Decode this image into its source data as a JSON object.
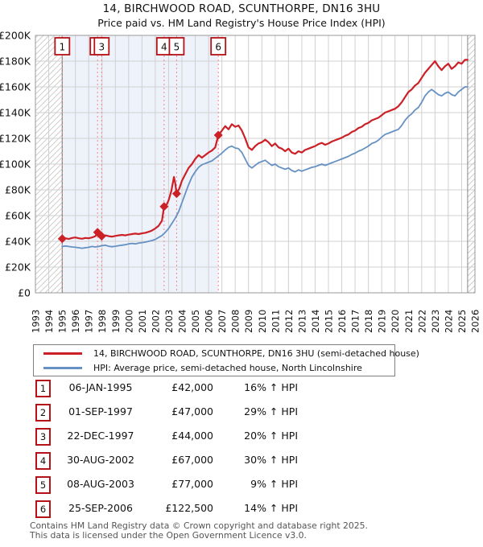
{
  "header": {
    "title": "14, BIRCHWOOD ROAD, SCUNTHORPE, DN16 3HU",
    "subtitle": "Price paid vs. HM Land Registry's House Price Index (HPI)"
  },
  "legend": {
    "property_label": "14, BIRCHWOOD ROAD, SCUNTHORPE, DN16 3HU (semi-detached house)",
    "hpi_label": "HPI: Average price, semi-detached house, North Lincolnshire"
  },
  "transactions": [
    {
      "n": "1",
      "date": "06-JAN-1995",
      "price": "£42,000",
      "change": "16% ↑ HPI"
    },
    {
      "n": "2",
      "date": "01-SEP-1997",
      "price": "£47,000",
      "change": "29% ↑ HPI"
    },
    {
      "n": "3",
      "date": "22-DEC-1997",
      "price": "£44,000",
      "change": "20% ↑ HPI"
    },
    {
      "n": "4",
      "date": "30-AUG-2002",
      "price": "£67,000",
      "change": "30% ↑ HPI"
    },
    {
      "n": "5",
      "date": "08-AUG-2003",
      "price": "£77,000",
      "change": "9% ↑ HPI"
    },
    {
      "n": "6",
      "date": "25-SEP-2006",
      "price": "£122,500",
      "change": "14% ↑ HPI"
    }
  ],
  "footer": {
    "line1": "Contains HM Land Registry data © Crown copyright and database right 2025.",
    "line2": "This data is licensed under the Open Government Licence v3.0."
  },
  "chart_data": {
    "type": "line",
    "title": "Price paid vs. HM Land Registry's House Price Index (HPI)",
    "values_unit": "GBP_thousands",
    "colors": {
      "property_line": "#cc2027",
      "hpi_line": "#6691c3",
      "sale_dotted_line": "#ee8888",
      "sale_box_border": "#b41217",
      "owned_tint": "#eef2fa",
      "gridline": "#d0d0d0",
      "plot_border": "#999999",
      "hatch_line": "#c8c8c8"
    },
    "x_axis": {
      "min": 1993,
      "max": 2026,
      "ticks": [
        1993,
        1994,
        1995,
        1996,
        1997,
        1998,
        1999,
        2000,
        2001,
        2002,
        2003,
        2004,
        2005,
        2006,
        2007,
        2008,
        2009,
        2010,
        2011,
        2012,
        2013,
        2014,
        2015,
        2016,
        2017,
        2018,
        2019,
        2020,
        2021,
        2022,
        2023,
        2024,
        2025,
        2026
      ]
    },
    "y_axis": {
      "min": 0,
      "max": 200,
      "ticks": [
        0,
        20,
        40,
        60,
        80,
        100,
        120,
        140,
        160,
        180,
        200
      ],
      "tick_labels": [
        "£0",
        "£20K",
        "£40K",
        "£60K",
        "£80K",
        "£100K",
        "£120K",
        "£140K",
        "£160K",
        "£180K",
        "£200K"
      ]
    },
    "shaded_region": {
      "from": 1995.014,
      "to": 2006.731
    },
    "hatched_regions": [
      {
        "from": 1993,
        "to": 1995.014
      },
      {
        "from": 2025.45,
        "to": 2026
      }
    ],
    "sale_markers": [
      {
        "n": "1",
        "year": 1995.014,
        "value": 42
      },
      {
        "n": "2",
        "year": 1997.665,
        "value": 47
      },
      {
        "n": "3",
        "year": 1997.974,
        "value": 44
      },
      {
        "n": "4",
        "year": 2002.66,
        "value": 67
      },
      {
        "n": "5",
        "year": 2003.602,
        "value": 77
      },
      {
        "n": "6",
        "year": 2006.731,
        "value": 122.5
      }
    ],
    "series": [
      {
        "name": "14, BIRCHWOOD ROAD, SCUNTHORPE, DN16 3HU (semi-detached house)",
        "color": "#cc2027",
        "points": [
          [
            1995.0,
            42
          ],
          [
            1995.25,
            42.4
          ],
          [
            1995.5,
            41.8
          ],
          [
            1995.75,
            42.6
          ],
          [
            1996.0,
            43
          ],
          [
            1996.25,
            42.4
          ],
          [
            1996.5,
            42
          ],
          [
            1996.75,
            42.6
          ],
          [
            1997.0,
            42.4
          ],
          [
            1997.25,
            43
          ],
          [
            1997.5,
            44
          ],
          [
            1997.665,
            47
          ],
          [
            1997.8,
            45.2
          ],
          [
            1997.974,
            44
          ],
          [
            1998.25,
            44.6
          ],
          [
            1998.5,
            44
          ],
          [
            1998.75,
            43.6
          ],
          [
            1999.0,
            44.2
          ],
          [
            1999.25,
            44.6
          ],
          [
            1999.5,
            45
          ],
          [
            1999.75,
            44.6
          ],
          [
            2000.0,
            45.2
          ],
          [
            2000.25,
            45.6
          ],
          [
            2000.5,
            46
          ],
          [
            2000.75,
            45.6
          ],
          [
            2001.0,
            46.2
          ],
          [
            2001.25,
            46.6
          ],
          [
            2001.5,
            47.4
          ],
          [
            2001.75,
            48.4
          ],
          [
            2002.0,
            50
          ],
          [
            2002.25,
            52
          ],
          [
            2002.5,
            56
          ],
          [
            2002.66,
            67
          ],
          [
            2002.85,
            68.5
          ],
          [
            2003.0,
            72
          ],
          [
            2003.2,
            79
          ],
          [
            2003.4,
            90
          ],
          [
            2003.5,
            85
          ],
          [
            2003.6,
            77
          ],
          [
            2003.8,
            81
          ],
          [
            2004.0,
            87
          ],
          [
            2004.25,
            92
          ],
          [
            2004.5,
            97
          ],
          [
            2004.75,
            100
          ],
          [
            2005.0,
            104
          ],
          [
            2005.25,
            107
          ],
          [
            2005.5,
            105
          ],
          [
            2005.75,
            107
          ],
          [
            2006.0,
            109
          ],
          [
            2006.25,
            110.5
          ],
          [
            2006.5,
            113
          ],
          [
            2006.731,
            122.5
          ],
          [
            2007.0,
            126
          ],
          [
            2007.25,
            129.5
          ],
          [
            2007.5,
            127
          ],
          [
            2007.75,
            131
          ],
          [
            2008.0,
            129
          ],
          [
            2008.25,
            130
          ],
          [
            2008.5,
            126
          ],
          [
            2008.75,
            120
          ],
          [
            2009.0,
            113
          ],
          [
            2009.25,
            111
          ],
          [
            2009.5,
            114
          ],
          [
            2009.75,
            116
          ],
          [
            2010.0,
            117
          ],
          [
            2010.25,
            119
          ],
          [
            2010.5,
            117
          ],
          [
            2010.75,
            114
          ],
          [
            2011.0,
            116
          ],
          [
            2011.25,
            113
          ],
          [
            2011.5,
            112
          ],
          [
            2011.75,
            110
          ],
          [
            2012.0,
            112
          ],
          [
            2012.25,
            109
          ],
          [
            2012.5,
            108
          ],
          [
            2012.75,
            110
          ],
          [
            2013.0,
            109
          ],
          [
            2013.25,
            111
          ],
          [
            2013.5,
            112
          ],
          [
            2013.75,
            113
          ],
          [
            2014.0,
            114
          ],
          [
            2014.25,
            115.5
          ],
          [
            2014.5,
            116.5
          ],
          [
            2014.75,
            115
          ],
          [
            2015.0,
            116
          ],
          [
            2015.25,
            117.5
          ],
          [
            2015.5,
            118.5
          ],
          [
            2015.75,
            119.5
          ],
          [
            2016.0,
            120.5
          ],
          [
            2016.25,
            122
          ],
          [
            2016.5,
            123
          ],
          [
            2016.75,
            125
          ],
          [
            2017.0,
            126
          ],
          [
            2017.25,
            128
          ],
          [
            2017.5,
            129
          ],
          [
            2017.75,
            131
          ],
          [
            2018.0,
            132
          ],
          [
            2018.25,
            134
          ],
          [
            2018.5,
            135
          ],
          [
            2018.75,
            136
          ],
          [
            2019.0,
            138
          ],
          [
            2019.25,
            140
          ],
          [
            2019.5,
            141
          ],
          [
            2019.75,
            142
          ],
          [
            2020.0,
            143
          ],
          [
            2020.25,
            145
          ],
          [
            2020.5,
            148
          ],
          [
            2020.75,
            152
          ],
          [
            2021.0,
            156
          ],
          [
            2021.25,
            158
          ],
          [
            2021.5,
            161
          ],
          [
            2021.75,
            163
          ],
          [
            2022.0,
            167
          ],
          [
            2022.25,
            171
          ],
          [
            2022.5,
            174
          ],
          [
            2022.75,
            177
          ],
          [
            2023.0,
            180
          ],
          [
            2023.25,
            176
          ],
          [
            2023.5,
            173
          ],
          [
            2023.75,
            176
          ],
          [
            2024.0,
            178
          ],
          [
            2024.25,
            174
          ],
          [
            2024.5,
            176
          ],
          [
            2024.75,
            179
          ],
          [
            2025.0,
            178
          ],
          [
            2025.25,
            181
          ],
          [
            2025.45,
            181
          ]
        ]
      },
      {
        "name": "HPI: Average price, semi-detached house, North Lincolnshire",
        "color": "#6691c3",
        "points": [
          [
            1995.0,
            36
          ],
          [
            1995.25,
            36.4
          ],
          [
            1995.5,
            36
          ],
          [
            1995.75,
            35.6
          ],
          [
            1996.0,
            35.4
          ],
          [
            1996.25,
            35
          ],
          [
            1996.5,
            34.6
          ],
          [
            1996.75,
            35
          ],
          [
            1997.0,
            35.4
          ],
          [
            1997.25,
            36
          ],
          [
            1997.5,
            35.6
          ],
          [
            1997.75,
            36
          ],
          [
            1998.0,
            36.6
          ],
          [
            1998.25,
            37
          ],
          [
            1998.5,
            36.2
          ],
          [
            1998.75,
            35.8
          ],
          [
            1999.0,
            36.2
          ],
          [
            1999.25,
            36.6
          ],
          [
            1999.5,
            37
          ],
          [
            1999.75,
            37.4
          ],
          [
            2000.0,
            38
          ],
          [
            2000.25,
            38.4
          ],
          [
            2000.5,
            38
          ],
          [
            2000.75,
            38.6
          ],
          [
            2001.0,
            39
          ],
          [
            2001.25,
            39.4
          ],
          [
            2001.5,
            40
          ],
          [
            2001.75,
            40.6
          ],
          [
            2002.0,
            41.5
          ],
          [
            2002.25,
            43
          ],
          [
            2002.5,
            44.5
          ],
          [
            2002.75,
            47
          ],
          [
            2003.0,
            50
          ],
          [
            2003.25,
            54
          ],
          [
            2003.5,
            58
          ],
          [
            2003.75,
            63
          ],
          [
            2004.0,
            70
          ],
          [
            2004.25,
            77
          ],
          [
            2004.5,
            84
          ],
          [
            2004.75,
            90
          ],
          [
            2005.0,
            94
          ],
          [
            2005.25,
            97.5
          ],
          [
            2005.5,
            99.5
          ],
          [
            2005.75,
            100.5
          ],
          [
            2006.0,
            101.5
          ],
          [
            2006.25,
            102.5
          ],
          [
            2006.5,
            104.5
          ],
          [
            2006.75,
            106.5
          ],
          [
            2007.0,
            108.5
          ],
          [
            2007.25,
            111
          ],
          [
            2007.5,
            113
          ],
          [
            2007.75,
            114
          ],
          [
            2008.0,
            112.5
          ],
          [
            2008.25,
            112
          ],
          [
            2008.5,
            109
          ],
          [
            2008.75,
            104
          ],
          [
            2009.0,
            99
          ],
          [
            2009.25,
            97
          ],
          [
            2009.5,
            99
          ],
          [
            2009.75,
            101
          ],
          [
            2010.0,
            102
          ],
          [
            2010.25,
            103
          ],
          [
            2010.5,
            101
          ],
          [
            2010.75,
            99
          ],
          [
            2011.0,
            100
          ],
          [
            2011.25,
            98
          ],
          [
            2011.5,
            97
          ],
          [
            2011.75,
            96
          ],
          [
            2012.0,
            97
          ],
          [
            2012.25,
            95
          ],
          [
            2012.5,
            94
          ],
          [
            2012.75,
            95.5
          ],
          [
            2013.0,
            94.5
          ],
          [
            2013.25,
            95.5
          ],
          [
            2013.5,
            96.5
          ],
          [
            2013.75,
            97.5
          ],
          [
            2014.0,
            98
          ],
          [
            2014.25,
            99
          ],
          [
            2014.5,
            100
          ],
          [
            2014.75,
            99
          ],
          [
            2015.0,
            100
          ],
          [
            2015.25,
            101
          ],
          [
            2015.5,
            102
          ],
          [
            2015.75,
            103
          ],
          [
            2016.0,
            104
          ],
          [
            2016.25,
            105
          ],
          [
            2016.5,
            106
          ],
          [
            2016.75,
            107.5
          ],
          [
            2017.0,
            108.5
          ],
          [
            2017.25,
            110
          ],
          [
            2017.5,
            111
          ],
          [
            2017.75,
            112.5
          ],
          [
            2018.0,
            114
          ],
          [
            2018.25,
            116
          ],
          [
            2018.5,
            117
          ],
          [
            2018.75,
            118.5
          ],
          [
            2019.0,
            121
          ],
          [
            2019.25,
            123
          ],
          [
            2019.5,
            124
          ],
          [
            2019.75,
            125
          ],
          [
            2020.0,
            126
          ],
          [
            2020.25,
            127
          ],
          [
            2020.5,
            130
          ],
          [
            2020.75,
            134
          ],
          [
            2021.0,
            137
          ],
          [
            2021.25,
            139
          ],
          [
            2021.5,
            142
          ],
          [
            2021.75,
            144
          ],
          [
            2022.0,
            148
          ],
          [
            2022.25,
            153
          ],
          [
            2022.5,
            156
          ],
          [
            2022.75,
            158
          ],
          [
            2023.0,
            156
          ],
          [
            2023.25,
            154
          ],
          [
            2023.5,
            153
          ],
          [
            2023.75,
            155
          ],
          [
            2024.0,
            156
          ],
          [
            2024.25,
            154
          ],
          [
            2024.5,
            153
          ],
          [
            2024.75,
            156
          ],
          [
            2025.0,
            158
          ],
          [
            2025.25,
            160
          ],
          [
            2025.45,
            160
          ]
        ]
      }
    ]
  }
}
